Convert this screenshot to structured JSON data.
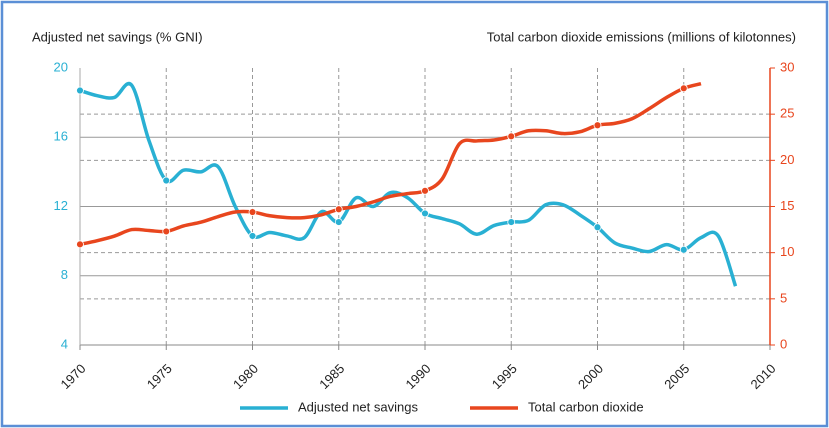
{
  "chart_data": {
    "type": "line",
    "y_label": "Adjusted net savings (% GNI)",
    "y2_label": "Total carbon dioxide emissions (millions of kilotonnes)",
    "xlim": [
      1970,
      2010
    ],
    "xticks": [
      1970,
      1975,
      1980,
      1985,
      1990,
      1995,
      2000,
      2005,
      2010
    ],
    "ylim": [
      4,
      20
    ],
    "yticks": [
      4,
      8,
      12,
      16,
      20
    ],
    "y2lim": [
      0,
      30
    ],
    "y2ticks": [
      0,
      5,
      10,
      15,
      20,
      25,
      30
    ],
    "grid": true,
    "legend": "bottom",
    "series": [
      {
        "name": "Adjusted net savings",
        "color": "#29b0d3",
        "x": [
          1970,
          1971,
          1972,
          1973,
          1974,
          1975,
          1976,
          1977,
          1978,
          1979,
          1980,
          1981,
          1982,
          1983,
          1984,
          1985,
          1986,
          1987,
          1988,
          1989,
          1990,
          1991,
          1992,
          1993,
          1994,
          1995,
          1996,
          1997,
          1998,
          1999,
          2000,
          2001,
          2002,
          2003,
          2004,
          2005,
          2006,
          2007,
          2008
        ],
        "values": [
          18.7,
          18.4,
          18.3,
          19.0,
          15.8,
          13.5,
          14.1,
          14.0,
          14.3,
          12.0,
          10.3,
          10.5,
          10.3,
          10.2,
          11.7,
          11.1,
          12.5,
          12.0,
          12.8,
          12.5,
          11.6,
          11.3,
          11.0,
          10.4,
          10.9,
          11.1,
          11.2,
          12.1,
          12.1,
          11.5,
          10.8,
          9.9,
          9.6,
          9.4,
          9.8,
          9.5,
          10.2,
          10.3,
          7.4
        ]
      },
      {
        "name": "Total carbon dioxide",
        "color": "#e8461e",
        "axis": "y2",
        "x": [
          1970,
          1971,
          1972,
          1973,
          1974,
          1975,
          1976,
          1977,
          1978,
          1979,
          1980,
          1981,
          1982,
          1983,
          1984,
          1985,
          1986,
          1987,
          1988,
          1989,
          1990,
          1991,
          1992,
          1993,
          1994,
          1995,
          1996,
          1997,
          1998,
          1999,
          2000,
          2001,
          2002,
          2003,
          2004,
          2005,
          2006
        ],
        "values": [
          10.9,
          11.3,
          11.8,
          12.5,
          12.4,
          12.3,
          12.9,
          13.3,
          13.9,
          14.4,
          14.4,
          14.0,
          13.8,
          13.8,
          14.1,
          14.7,
          15.0,
          15.5,
          16.1,
          16.4,
          16.7,
          18.0,
          21.8,
          22.1,
          22.2,
          22.6,
          23.2,
          23.2,
          22.9,
          23.1,
          23.8,
          24.0,
          24.5,
          25.6,
          26.8,
          27.8,
          28.3
        ]
      }
    ]
  }
}
